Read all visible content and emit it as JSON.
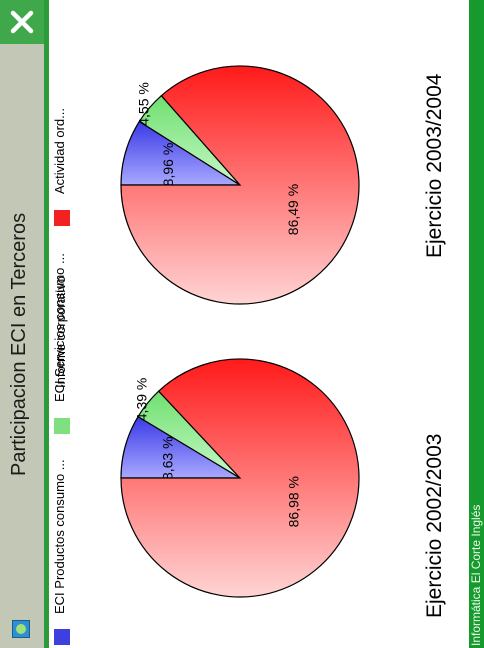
{
  "window": {
    "title": "Participacion ECI en Terceros",
    "close_icon": "close-icon",
    "app_icon": "app-icon"
  },
  "footer": {
    "text": "Informática El Corte Inglés"
  },
  "colors": {
    "title_strip": "#c3c8b6",
    "close_button": "#3fa84a",
    "footer_strip": "#169a2e",
    "series_productos": "#3f3fe0",
    "series_servicios": "#7fe07f",
    "series_actividad": "#f22222"
  },
  "chart_data": [
    {
      "type": "pie",
      "title": "Ejercicio 2002/2003",
      "subtitle": "Informe corporativo",
      "legend": "left",
      "categories": [
        "ECI Productos consumo ...",
        "ECI Servicios consumo ...",
        "Actividad ord..."
      ],
      "values": [
        8.63,
        4.39,
        86.98
      ],
      "labels": [
        "8,63 %",
        "4,39 %",
        "86,98 %"
      ]
    },
    {
      "type": "pie",
      "title": "Ejercicio 2003/2004",
      "subtitle": "Informe corporativo",
      "legend": "left",
      "categories": [
        "ECI Productos consumo ...",
        "ECI Servicios consumo ...",
        "Actividad ord..."
      ],
      "values": [
        8.96,
        4.55,
        86.49
      ],
      "labels": [
        "8,96 %",
        "4,55 %",
        "86,49 %"
      ]
    }
  ]
}
